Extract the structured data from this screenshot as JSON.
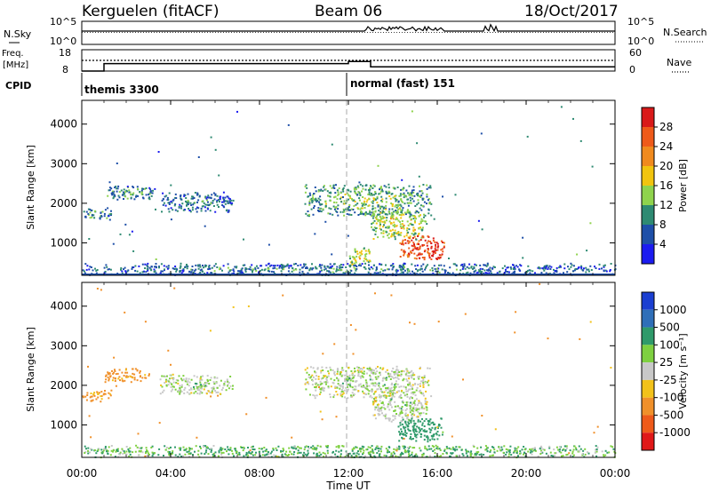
{
  "header": {
    "station": "Kerguelen (fitACF)",
    "beam": "Beam 06",
    "date": "18/Oct/2017"
  },
  "strip_noise": {
    "left_label": "N.Sky",
    "right_label": "N.Search",
    "left_ticks": [
      "10^5",
      "10^0"
    ],
    "right_ticks": [
      "10^5",
      "10^0"
    ]
  },
  "strip_freq": {
    "left_label_1": "Freq.",
    "left_label_2": "[MHz]",
    "left_ticks": [
      "18",
      "8"
    ],
    "right_label": "Nave",
    "right_ticks": [
      "60",
      "0"
    ]
  },
  "cpid": {
    "label": "CPID",
    "segments": [
      {
        "name": "themis 3300",
        "start_hour": 0
      },
      {
        "name": "normal (fast) 151",
        "start_hour": 12
      }
    ]
  },
  "axes": {
    "xlabel": "Time UT",
    "x_ticks": [
      "00:00",
      "04:00",
      "08:00",
      "12:00",
      "16:00",
      "20:00",
      "00:00"
    ],
    "ylabel": "Slant Range [km]",
    "y_ticks": [
      "1000",
      "2000",
      "3000",
      "4000"
    ]
  },
  "colorbars": {
    "power": {
      "label": "Power [dB]",
      "ticks": [
        "4",
        "8",
        "12",
        "16",
        "20",
        "24",
        "28"
      ],
      "colors": [
        "#1b1bf0",
        "#1e4fa8",
        "#2e8a72",
        "#8fd34d",
        "#f1c40f",
        "#f08a1e",
        "#ee5a1a",
        "#d91a1a"
      ]
    },
    "velocity": {
      "label": "Velocity [m s⁻¹]",
      "ticks": [
        "1000",
        "500",
        "100",
        "25",
        "-25",
        "-100",
        "-500",
        "-1000"
      ],
      "colors": [
        "#1b3fd1",
        "#2f6fb8",
        "#2f9a6a",
        "#7ed040",
        "#c8c8c8",
        "#f2c21a",
        "#f0902a",
        "#ee5a1a",
        "#e01818"
      ]
    }
  },
  "chart_data": [
    {
      "type": "line",
      "title": "",
      "x": [
        0,
        1,
        12,
        13,
        24
      ],
      "series": [
        {
          "values": [
            8,
            11.5,
            12.5,
            10,
            10
          ]
        }
      ],
      "xlabel": "Time UT",
      "ylabel": "Freq. [MHz]",
      "ylim": [
        8,
        18
      ]
    },
    {
      "type": "heatmap",
      "title": "Power",
      "xlabel": "Time UT",
      "ylabel": "Slant Range [km]",
      "xlim": [
        0,
        24
      ],
      "ylim": [
        180,
        4600
      ],
      "colorbar_label": "Power [dB]",
      "regions": [
        {
          "t": [
            0.0,
            1.3
          ],
          "r": [
            1600,
            1900
          ],
          "value": 8
        },
        {
          "t": [
            1.0,
            3.3
          ],
          "r": [
            2100,
            2450
          ],
          "value": 8
        },
        {
          "t": [
            3.5,
            6.8
          ],
          "r": [
            1800,
            2300
          ],
          "value": 6
        },
        {
          "t": [
            10.0,
            15.7
          ],
          "r": [
            1700,
            2500
          ],
          "value": 10
        },
        {
          "t": [
            12.0,
            13.0
          ],
          "r": [
            400,
            900
          ],
          "value": 14
        },
        {
          "t": [
            13.0,
            15.5
          ],
          "r": [
            1100,
            1900
          ],
          "value": 14
        },
        {
          "t": [
            14.2,
            16.3
          ],
          "r": [
            600,
            1200
          ],
          "value": 26
        },
        {
          "t": [
            0.0,
            24.0
          ],
          "r": [
            200,
            500
          ],
          "value": 6
        }
      ]
    },
    {
      "type": "heatmap",
      "title": "Velocity",
      "xlabel": "Time UT",
      "ylabel": "Slant Range [km]",
      "xlim": [
        0,
        24
      ],
      "ylim": [
        180,
        4600
      ],
      "colorbar_label": "Velocity [m s-1]",
      "regions": [
        {
          "t": [
            0.0,
            1.3
          ],
          "r": [
            1600,
            1900
          ],
          "value": -100
        },
        {
          "t": [
            1.0,
            3.0
          ],
          "r": [
            2100,
            2450
          ],
          "value": -100
        },
        {
          "t": [
            3.5,
            6.8
          ],
          "r": [
            1800,
            2300
          ],
          "value": 0
        },
        {
          "t": [
            10.0,
            15.7
          ],
          "r": [
            1700,
            2500
          ],
          "value": 0
        },
        {
          "t": [
            13.0,
            15.5
          ],
          "r": [
            1100,
            1900
          ],
          "value": 0
        },
        {
          "t": [
            14.2,
            16.3
          ],
          "r": [
            600,
            1200
          ],
          "value": 100
        },
        {
          "t": [
            0.0,
            24.0
          ],
          "r": [
            200,
            500
          ],
          "value": 50
        }
      ]
    }
  ]
}
